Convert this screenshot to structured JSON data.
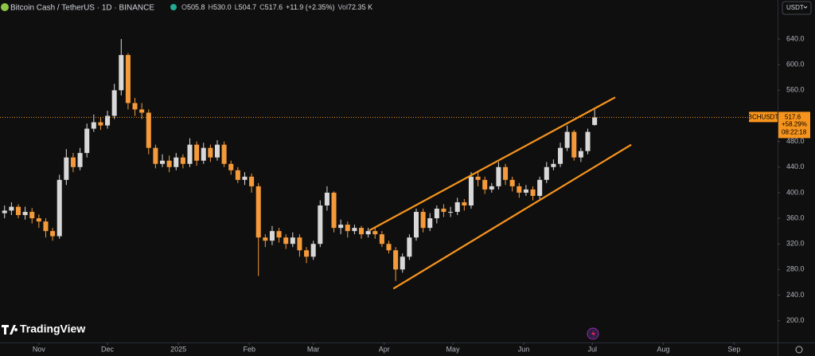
{
  "chart_data": {
    "type": "candlestick",
    "title": "Bitcoin Cash / TetherUS · 1D · BINANCE",
    "legend_fields": [
      {
        "label": "O",
        "value": "505.8"
      },
      {
        "label": "H",
        "value": "530.0"
      },
      {
        "label": "L",
        "value": "504.7"
      },
      {
        "label": "C",
        "value": "517.6"
      }
    ],
    "change": "+11.9 (+2.35%)",
    "volume": {
      "label": "Vol",
      "value": "72.35 K"
    },
    "currency": "USDT",
    "symbol": "BCHUSDT",
    "price_change": "+58.29%",
    "countdown": "08:22:18",
    "watermark": "TradingView",
    "up_color": "#d8d8d8",
    "down_color": "#f59a3a",
    "channel_color": "#f7941d",
    "grid": false,
    "xlim": [
      -17,
      323
    ],
    "ylim": [
      166,
      701
    ],
    "xticks": [
      {
        "value": 0,
        "label": "Nov"
      },
      {
        "value": 30,
        "label": "Dec"
      },
      {
        "value": 61,
        "label": "2025"
      },
      {
        "value": 92,
        "label": "Feb"
      },
      {
        "value": 120,
        "label": "Mar"
      },
      {
        "value": 151,
        "label": "Apr"
      },
      {
        "value": 181,
        "label": "May"
      },
      {
        "value": 212,
        "label": "Jun"
      },
      {
        "value": 242,
        "label": "Jul"
      },
      {
        "value": 273,
        "label": "Aug"
      },
      {
        "value": 304,
        "label": "Sep"
      }
    ],
    "yticks": [
      {
        "value": 200,
        "label": "200.0"
      },
      {
        "value": 240,
        "label": "240.0"
      },
      {
        "value": 280,
        "label": "280.0"
      },
      {
        "value": 320,
        "label": "320.0"
      },
      {
        "value": 360,
        "label": "360.0"
      },
      {
        "value": 400,
        "label": "400.0"
      },
      {
        "value": 440,
        "label": "440.0"
      },
      {
        "value": 480,
        "label": "480.0"
      },
      {
        "value": 560,
        "label": "560.0"
      },
      {
        "value": 600,
        "label": "600.0"
      },
      {
        "value": 640,
        "label": "640.0"
      }
    ],
    "x": [
      -15,
      -12,
      -9,
      -6,
      -3,
      0,
      3,
      6,
      9,
      12,
      15,
      18,
      21,
      24,
      27,
      30,
      33,
      36,
      39,
      42,
      45,
      48,
      51,
      54,
      57,
      60,
      63,
      66,
      69,
      72,
      75,
      78,
      81,
      84,
      87,
      90,
      93,
      96,
      99,
      102,
      105,
      108,
      111,
      114,
      117,
      120,
      123,
      126,
      129,
      132,
      135,
      138,
      141,
      144,
      147,
      150,
      153,
      156,
      159,
      162,
      165,
      168,
      171,
      174,
      177,
      180,
      183,
      186,
      189,
      192,
      195,
      198,
      201,
      204,
      207,
      210,
      213,
      216,
      219,
      222,
      225,
      228,
      231,
      234,
      237,
      240,
      243
    ],
    "open": [
      368,
      372,
      378,
      365,
      370,
      360,
      355,
      340,
      332,
      420,
      455,
      440,
      462,
      500,
      510,
      505,
      520,
      560,
      615,
      540,
      530,
      525,
      470,
      445,
      450,
      440,
      455,
      445,
      475,
      450,
      470,
      455,
      475,
      445,
      435,
      420,
      425,
      410,
      330,
      325,
      340,
      330,
      320,
      330,
      310,
      300,
      320,
      380,
      400,
      345,
      350,
      340,
      345,
      335,
      340,
      335,
      320,
      310,
      280,
      300,
      330,
      370,
      345,
      360,
      375,
      370,
      370,
      385,
      380,
      425,
      420,
      405,
      410,
      440,
      420,
      410,
      400,
      405,
      395,
      420,
      440,
      445,
      470,
      495,
      455,
      465,
      505.8
    ],
    "high": [
      380,
      385,
      382,
      378,
      376,
      366,
      360,
      345,
      428,
      468,
      462,
      470,
      508,
      522,
      518,
      528,
      570,
      640,
      618,
      548,
      540,
      530,
      475,
      460,
      458,
      462,
      460,
      485,
      480,
      478,
      475,
      482,
      480,
      450,
      440,
      432,
      430,
      415,
      335,
      348,
      345,
      335,
      338,
      335,
      315,
      325,
      388,
      410,
      402,
      358,
      355,
      350,
      348,
      345,
      345,
      340,
      325,
      315,
      305,
      335,
      375,
      375,
      368,
      380,
      382,
      378,
      392,
      390,
      432,
      432,
      425,
      415,
      448,
      445,
      425,
      415,
      412,
      410,
      425,
      448,
      452,
      478,
      505,
      498,
      470,
      500,
      530
    ],
    "low": [
      360,
      365,
      360,
      358,
      352,
      345,
      330,
      325,
      328,
      412,
      432,
      435,
      455,
      495,
      498,
      500,
      515,
      552,
      530,
      520,
      515,
      460,
      438,
      440,
      432,
      435,
      438,
      440,
      442,
      445,
      448,
      450,
      440,
      428,
      415,
      412,
      400,
      270,
      315,
      318,
      322,
      312,
      315,
      300,
      290,
      295,
      315,
      372,
      338,
      335,
      330,
      335,
      328,
      330,
      328,
      315,
      305,
      262,
      275,
      295,
      325,
      338,
      340,
      352,
      362,
      362,
      365,
      372,
      375,
      410,
      398,
      400,
      405,
      412,
      402,
      392,
      395,
      388,
      390,
      415,
      435,
      440,
      465,
      450,
      448,
      460,
      504.7
    ],
    "close": [
      372,
      378,
      365,
      370,
      360,
      355,
      340,
      332,
      420,
      455,
      440,
      462,
      500,
      510,
      505,
      520,
      560,
      615,
      540,
      530,
      525,
      470,
      445,
      450,
      440,
      455,
      445,
      475,
      450,
      470,
      455,
      475,
      445,
      435,
      420,
      425,
      410,
      330,
      325,
      340,
      330,
      320,
      330,
      310,
      300,
      320,
      380,
      400,
      345,
      350,
      340,
      345,
      335,
      340,
      335,
      320,
      310,
      280,
      300,
      330,
      370,
      345,
      360,
      375,
      370,
      370,
      385,
      380,
      425,
      420,
      405,
      410,
      440,
      420,
      410,
      400,
      405,
      395,
      420,
      440,
      445,
      470,
      495,
      455,
      465,
      495,
      517.6
    ],
    "channel": [
      {
        "x": [
          144.5,
          252
        ],
        "y": [
          341,
          549
        ]
      },
      {
        "x": [
          155,
          259
        ],
        "y": [
          250,
          475
        ]
      }
    ]
  }
}
